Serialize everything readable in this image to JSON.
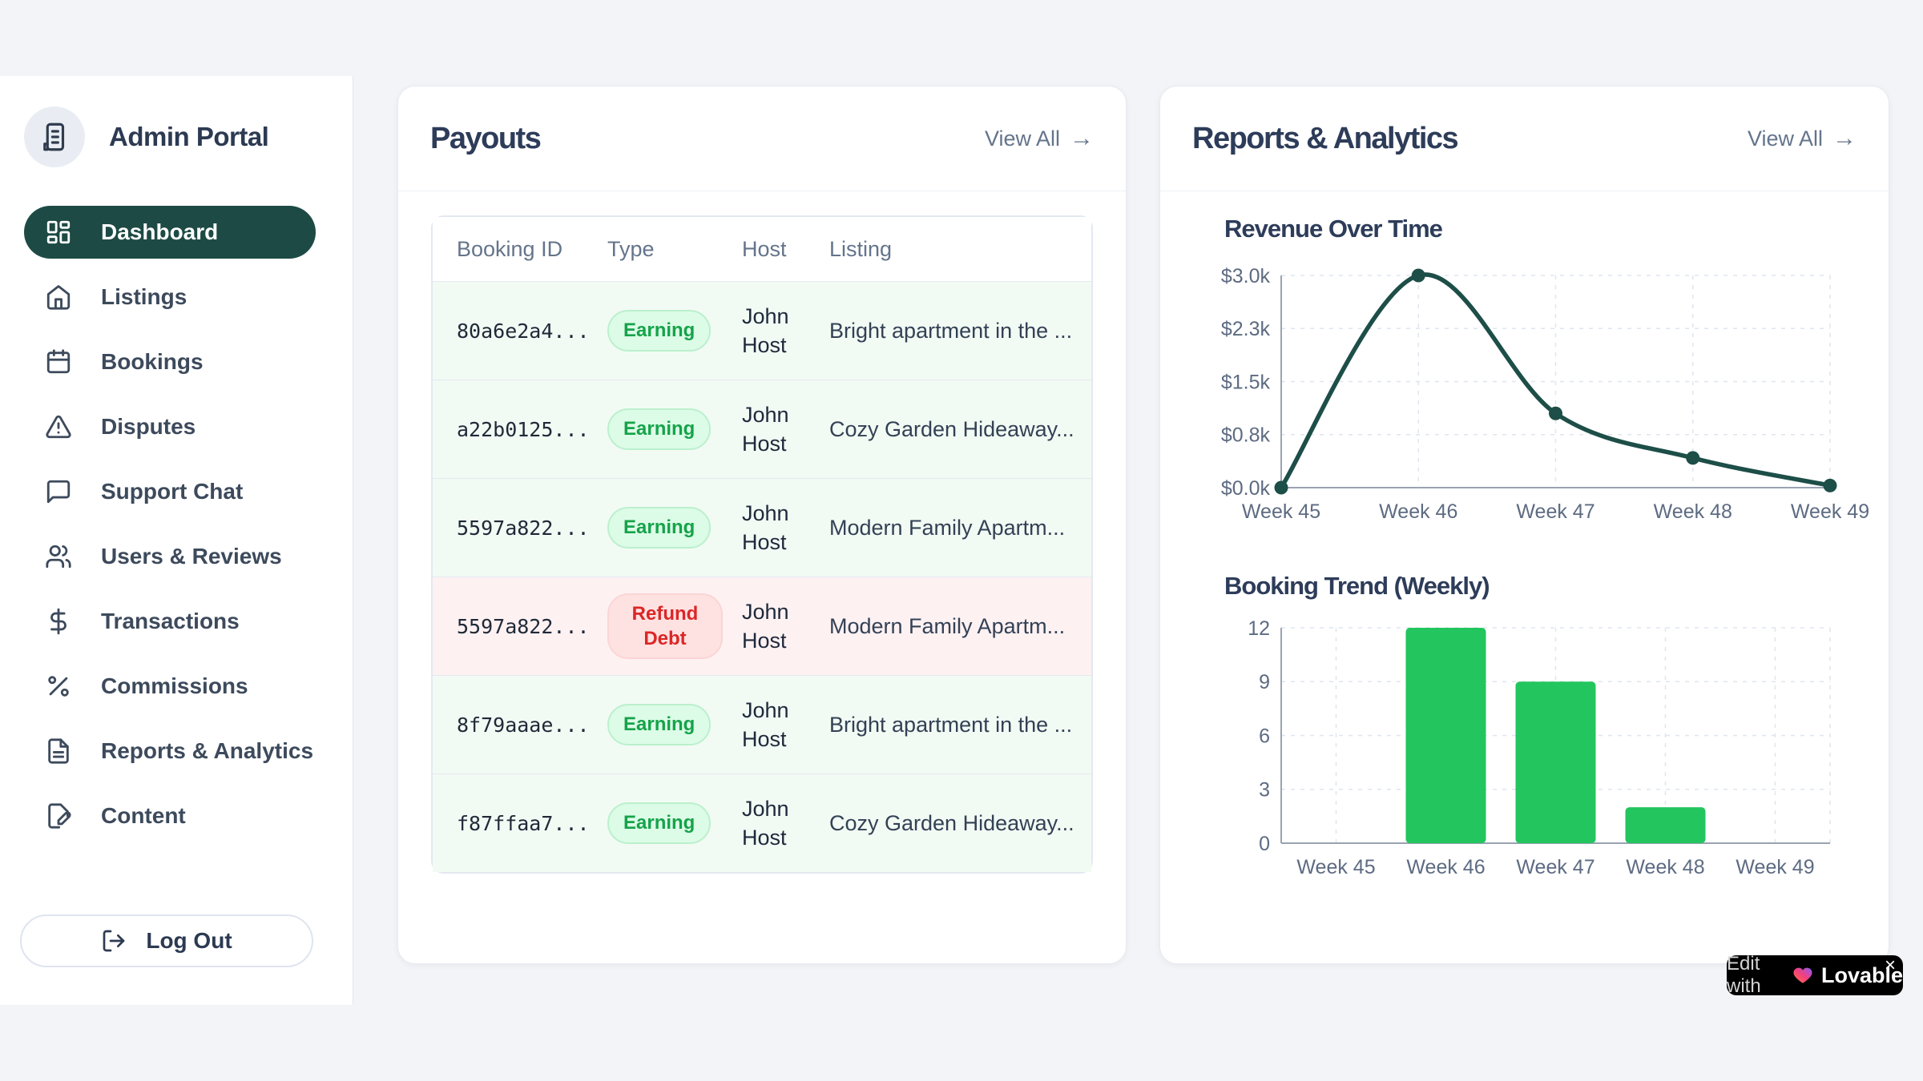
{
  "app": {
    "title": "Admin Portal"
  },
  "sidebar": {
    "items": [
      {
        "label": "Dashboard",
        "icon": "layout-dashboard",
        "active": true
      },
      {
        "label": "Listings",
        "icon": "home",
        "active": false
      },
      {
        "label": "Bookings",
        "icon": "calendar",
        "active": false
      },
      {
        "label": "Disputes",
        "icon": "alert-triangle",
        "active": false
      },
      {
        "label": "Support Chat",
        "icon": "message-square",
        "active": false
      },
      {
        "label": "Users & Reviews",
        "icon": "users",
        "active": false
      },
      {
        "label": "Transactions",
        "icon": "dollar-sign",
        "active": false
      },
      {
        "label": "Commissions",
        "icon": "percent",
        "active": false
      },
      {
        "label": "Reports & Analytics",
        "icon": "file-text",
        "active": false
      },
      {
        "label": "Content",
        "icon": "file-pen",
        "active": false
      }
    ],
    "logout_label": "Log Out"
  },
  "payouts": {
    "title": "Payouts",
    "view_all": "View All",
    "arrow": "→",
    "table": {
      "columns": [
        "Booking ID",
        "Type",
        "Host",
        "Listing"
      ],
      "rows": [
        {
          "id": "80a6e2a4...",
          "type": "Earning",
          "host": "John Host",
          "listing": "Bright apartment in the ...",
          "tone": "green"
        },
        {
          "id": "a22b0125...",
          "type": "Earning",
          "host": "John Host",
          "listing": "Cozy Garden Hideaway...",
          "tone": "green"
        },
        {
          "id": "5597a822...",
          "type": "Earning",
          "host": "John Host",
          "listing": "Modern Family Apartm...",
          "tone": "green"
        },
        {
          "id": "5597a822...",
          "type": "Refund Debt",
          "host": "John Host",
          "listing": "Modern Family Apartm...",
          "tone": "red"
        },
        {
          "id": "8f79aaae...",
          "type": "Earning",
          "host": "John Host",
          "listing": "Bright apartment in the ...",
          "tone": "green"
        },
        {
          "id": "f87ffaa7...",
          "type": "Earning",
          "host": "John Host",
          "listing": "Cozy Garden Hideaway...",
          "tone": "green"
        }
      ]
    }
  },
  "reports": {
    "title": "Reports & Analytics",
    "view_all": "View All",
    "arrow": "→"
  },
  "chart_data": [
    {
      "type": "line",
      "title": "Revenue Over Time",
      "x": [
        "Week 45",
        "Week 46",
        "Week 47",
        "Week 48",
        "Week 49"
      ],
      "values": [
        0,
        3000,
        1050,
        420,
        30
      ],
      "ylim": [
        0,
        3000
      ],
      "ytick_values": [
        0,
        750,
        1500,
        2250,
        3000
      ],
      "ytick_labels": [
        "$0.0k",
        "$0.8k",
        "$1.5k",
        "$2.3k",
        "$3.0k"
      ],
      "grid": true,
      "line_color": "#1d4e48",
      "point_color": "#1d4e48"
    },
    {
      "type": "bar",
      "title": "Booking Trend (Weekly)",
      "categories": [
        "Week 45",
        "Week 46",
        "Week 47",
        "Week 48",
        "Week 49"
      ],
      "values": [
        0,
        12,
        9,
        2,
        0
      ],
      "ylim": [
        0,
        12
      ],
      "ytick_values": [
        0,
        3,
        6,
        9,
        12
      ],
      "ytick_labels": [
        "0",
        "3",
        "6",
        "9",
        "12"
      ],
      "grid": true,
      "bar_color": "#22c55e"
    }
  ],
  "lovable_badge": {
    "prefix": "Edit with",
    "brand": "Lovable",
    "close": "×"
  },
  "colors": {
    "sidebar_active_bg": "#1d4a44",
    "card_title": "#2d3c59",
    "muted_text": "#64748b",
    "line_series": "#1d4e48",
    "bar_series": "#22c55e",
    "badge_green_bg": "#dcfce7",
    "badge_green_text": "#16a34a",
    "badge_red_bg": "#fee2e2",
    "badge_red_text": "#dc2626",
    "row_green_bg": "#f2faf4",
    "row_red_bg": "#fdf1f2"
  }
}
